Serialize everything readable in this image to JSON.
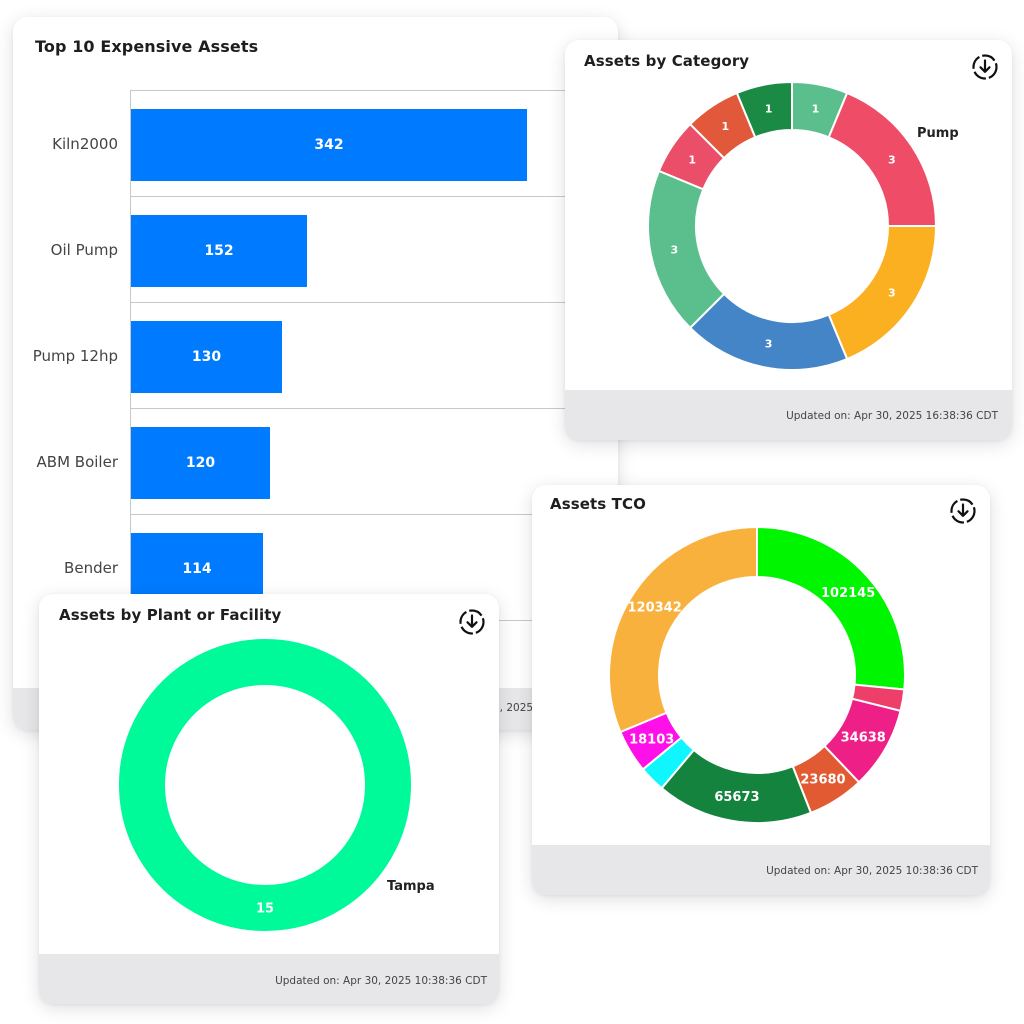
{
  "top_assets": {
    "title": "Top 10 Expensive Assets",
    "footer_partial": "0, 2025",
    "chart_data": {
      "type": "bar",
      "orientation": "horizontal",
      "categories": [
        "Kiln2000",
        "Oil Pump",
        "Pump 12hp",
        "ABM Boiler",
        "Bender"
      ],
      "values": [
        342,
        152,
        130,
        120,
        114
      ],
      "xlim": [
        0,
        400
      ],
      "bar_color": "#007bff"
    }
  },
  "by_category": {
    "title": "Assets by Category",
    "footer": "Updated on: Apr 30, 2025 16:38:36 CDT",
    "download_icon": "download-circle-icon",
    "chart_data": {
      "type": "pie",
      "donut": true,
      "values": [
        1,
        3,
        3,
        3,
        3,
        1,
        1,
        1
      ],
      "colors": [
        "#5bbf8d",
        "#ef4c68",
        "#fbb022",
        "#4485c7",
        "#5bbf8d",
        "#ea4e68",
        "#e2583a",
        "#1a8a45"
      ],
      "outside_label": "Pump"
    }
  },
  "tco": {
    "title": "Assets TCO",
    "footer": "Updated on: Apr 30, 2025 10:38:36 CDT",
    "download_icon": "download-circle-icon",
    "chart_data": {
      "type": "pie",
      "donut": true,
      "values": [
        102145,
        9000,
        34638,
        23680,
        65673,
        11000,
        18103,
        120342
      ],
      "labels": [
        "102145",
        "",
        "34638",
        "23680",
        "65673",
        "",
        "18103",
        "120342"
      ],
      "colors": [
        "#00f500",
        "#ed3f6a",
        "#ee2087",
        "#e25a32",
        "#13833d",
        "#10f6ff",
        "#ff10e8",
        "#f9b13d"
      ]
    }
  },
  "by_plant": {
    "title": "Assets by Plant or Facility",
    "footer": "Updated on: Apr 30, 2025 10:38:36 CDT",
    "download_icon": "download-circle-icon",
    "chart_data": {
      "type": "pie",
      "donut": true,
      "values": [
        15
      ],
      "labels": [
        "15"
      ],
      "colors": [
        "#00fa9a"
      ],
      "outside_label": "Tampa"
    }
  }
}
